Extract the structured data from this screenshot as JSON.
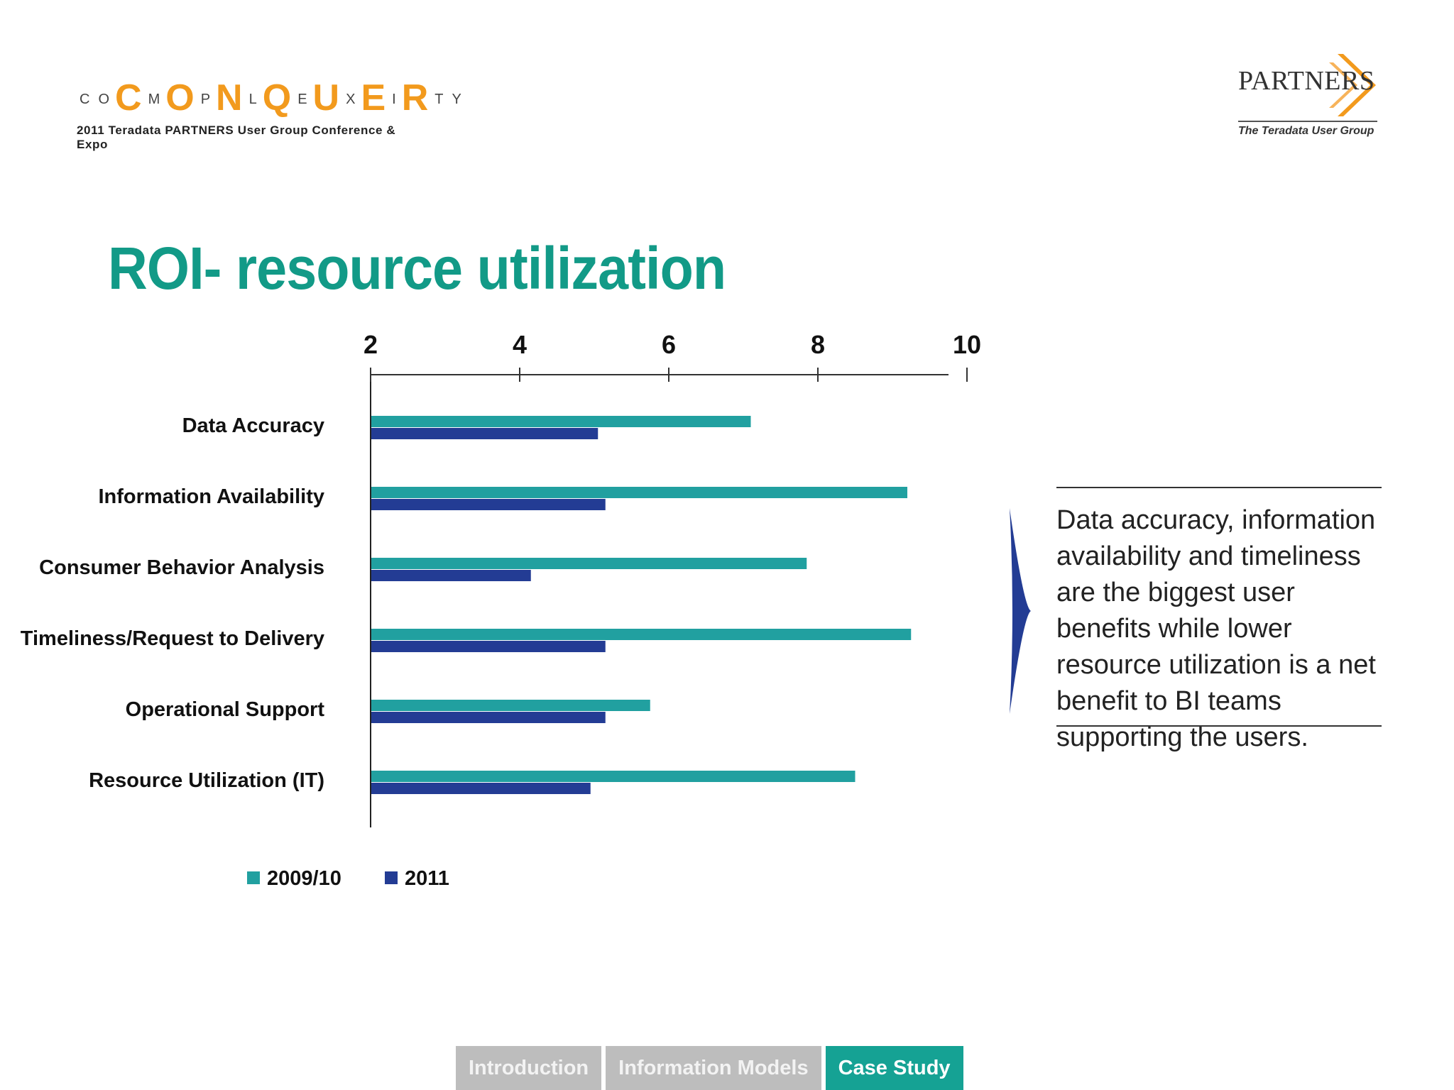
{
  "header": {
    "conference_logo": {
      "small_letters": [
        "C",
        "O",
        "M",
        "P",
        "L",
        "E",
        "X",
        "I",
        "T",
        "Y"
      ],
      "big_letters": [
        "C",
        "O",
        "N",
        "Q",
        "U",
        "E",
        "R"
      ],
      "tagline": "2011 Teradata PARTNERS User Group Conference & Expo"
    },
    "partners_logo": {
      "name": "PARTNERS",
      "subtitle": "The Teradata User Group"
    }
  },
  "title": "ROI- resource utilization",
  "chart_data": {
    "type": "bar",
    "orientation": "horizontal",
    "categories": [
      "Data Accuracy",
      "Information Availability",
      "Consumer Behavior Analysis",
      "Timeliness/Request to Delivery",
      "Operational Support",
      "Resource Utilization (IT)"
    ],
    "series": [
      {
        "name": "2009/10",
        "color": "#21a0a0",
        "values": [
          7.1,
          9.2,
          7.85,
          9.25,
          5.75,
          8.5
        ]
      },
      {
        "name": "2011",
        "color": "#233c94",
        "values": [
          5.05,
          5.15,
          4.15,
          5.15,
          5.15,
          4.95
        ]
      }
    ],
    "xlim": [
      2,
      10
    ],
    "xticks": [
      "2",
      "4",
      "6",
      "8",
      "10"
    ],
    "axis_position": "top",
    "grid": false,
    "legend_position": "bottom-left"
  },
  "callout": {
    "text": "Data accuracy, information availability and timeliness are the biggest user benefits while lower resource utilization is a net benefit to BI teams supporting the users.",
    "arrow_color": "#233c94"
  },
  "nav": {
    "tabs": [
      {
        "label": "Introduction",
        "active": false
      },
      {
        "label": "Information Models",
        "active": false
      },
      {
        "label": "Case Study",
        "active": true
      }
    ]
  }
}
